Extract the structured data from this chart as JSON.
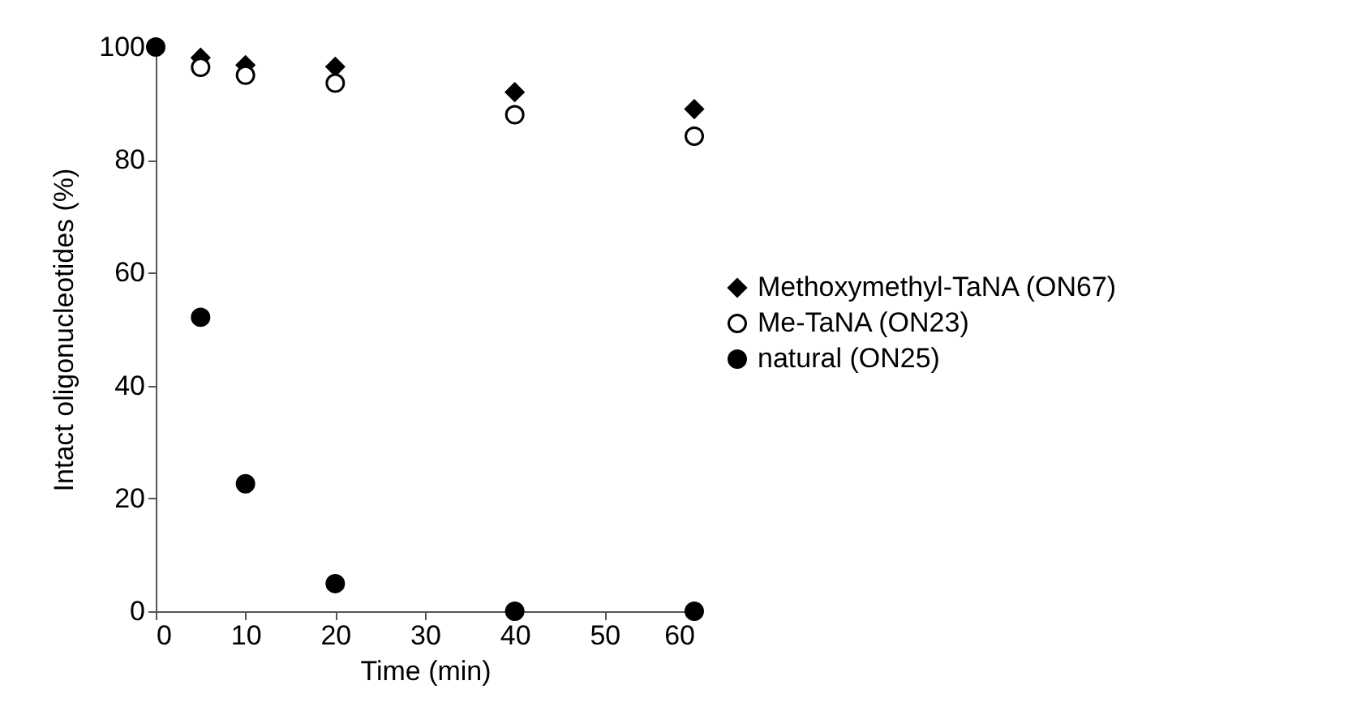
{
  "chart_data": {
    "type": "scatter",
    "xlabel": "Time (min)",
    "ylabel": "Intact oligonucleotides (%)",
    "x": [
      0,
      5,
      10,
      20,
      40,
      60
    ],
    "xlim": [
      0,
      60
    ],
    "xticks": [
      0,
      10,
      20,
      30,
      40,
      50,
      60
    ],
    "ylim": [
      0,
      100
    ],
    "yticks": [
      0,
      20,
      40,
      60,
      80,
      100
    ],
    "grid": false,
    "legend": "right",
    "series": [
      {
        "name": "Methoxymethyl-TaNA (ON67)",
        "color": "#000000",
        "marker": "diamond",
        "values": [
          null,
          98.1,
          96.8,
          96.5,
          92.0,
          89.0
        ]
      },
      {
        "name": "Me-TaNA (ON23)",
        "color": "#ffffff",
        "marker": "circle",
        "values": [
          null,
          96.4,
          95.0,
          93.6,
          88.0,
          84.2
        ]
      },
      {
        "name": "natural (ON25)",
        "color": "#000000",
        "marker": "circle",
        "values": [
          100,
          52.1,
          22.6,
          4.9,
          0,
          0
        ]
      }
    ]
  }
}
